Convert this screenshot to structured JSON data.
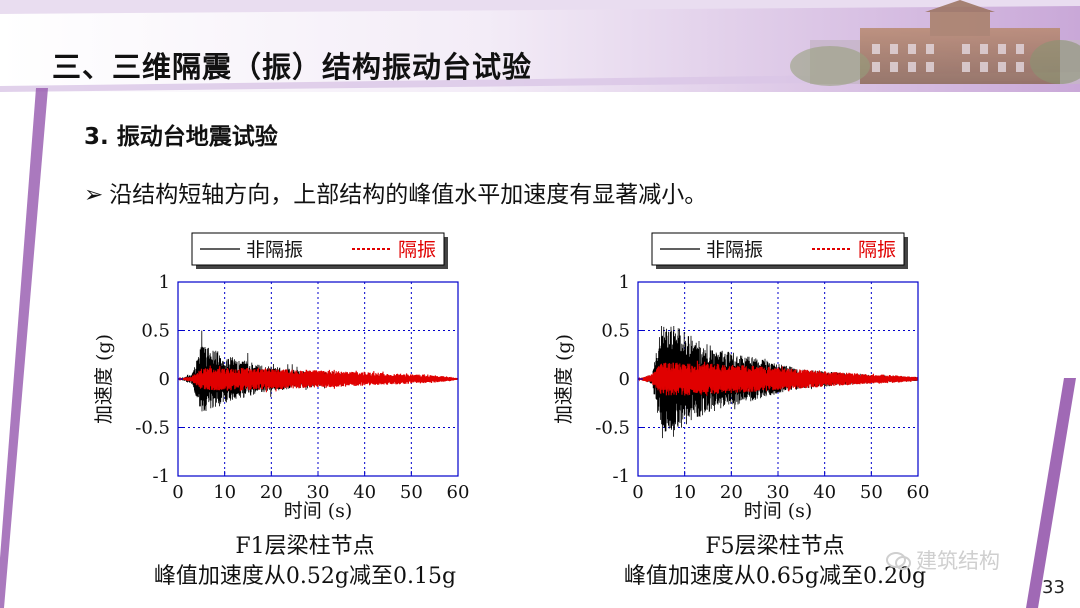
{
  "header": {
    "title": "三、三维隔震（振）结构振动台试验",
    "subtitle": "3. 振动台地震试验",
    "bullet_marker": "➢",
    "bullet_text": "沿结构短轴方向，上部结构的峰值水平加速度有显著减小。"
  },
  "legend": {
    "series1": "非隔振",
    "series2": "隔振"
  },
  "colors": {
    "series1": "#000000",
    "series2": "#e00000",
    "grid": "#0000cc",
    "bannerGradientStart": "#ffffff",
    "bannerGradientEnd": "#b58ac9",
    "accentStripe": "#8f4fa8"
  },
  "chart_data": [
    {
      "type": "line",
      "title": "",
      "xlabel": "时间 (s)",
      "ylabel": "加速度 (g)",
      "xlim": [
        0,
        60
      ],
      "ylim": [
        -1,
        1
      ],
      "xticks": [
        0,
        10,
        20,
        30,
        40,
        50,
        60
      ],
      "yticks": [
        -1,
        -0.5,
        0,
        0.5,
        1
      ],
      "ytick_labels": [
        "-1",
        "-0.5",
        "0",
        "0.5",
        "1"
      ],
      "grid": true,
      "legend_position": "top",
      "series": [
        {
          "name": "非隔振",
          "style": "solid",
          "peak": 0.52,
          "envelope": {
            "t": [
              0,
              3,
              5,
              8,
              12,
              18,
              25,
              30,
              35,
              40,
              45,
              50,
              60
            ],
            "a": [
              0.0,
              0.05,
              0.35,
              0.3,
              0.22,
              0.14,
              0.1,
              0.08,
              0.05,
              0.04,
              0.03,
              0.02,
              0.01
            ]
          }
        },
        {
          "name": "隔振",
          "style": "dashed",
          "peak": 0.15,
          "envelope": {
            "t": [
              0,
              3,
              5,
              10,
              20,
              30,
              40,
              50,
              55,
              60
            ],
            "a": [
              0.0,
              0.03,
              0.11,
              0.12,
              0.11,
              0.09,
              0.07,
              0.05,
              0.04,
              0.01
            ]
          }
        }
      ],
      "caption_line1": "F1层梁柱节点",
      "caption_line2": "峰值加速度从0.52g减至0.15g"
    },
    {
      "type": "line",
      "title": "",
      "xlabel": "时间 (s)",
      "ylabel": "加速度 (g)",
      "xlim": [
        0,
        60
      ],
      "ylim": [
        -1,
        1
      ],
      "xticks": [
        0,
        10,
        20,
        30,
        40,
        50,
        60
      ],
      "yticks": [
        -1,
        -0.5,
        0,
        0.5,
        1
      ],
      "ytick_labels": [
        "-1",
        "-0.5",
        "0",
        "0.5",
        "1"
      ],
      "grid": true,
      "legend_position": "top",
      "series": [
        {
          "name": "非隔振",
          "style": "solid",
          "peak": 0.65,
          "envelope": {
            "t": [
              0,
              3,
              5,
              8,
              12,
              18,
              25,
              30,
              35,
              40,
              45,
              50,
              55,
              60
            ],
            "a": [
              0.0,
              0.05,
              0.55,
              0.55,
              0.42,
              0.3,
              0.22,
              0.16,
              0.1,
              0.08,
              0.06,
              0.04,
              0.03,
              0.02
            ]
          }
        },
        {
          "name": "隔振",
          "style": "dashed",
          "peak": 0.2,
          "envelope": {
            "t": [
              0,
              3,
              5,
              10,
              20,
              30,
              40,
              50,
              55,
              60
            ],
            "a": [
              0.0,
              0.05,
              0.17,
              0.17,
              0.15,
              0.12,
              0.08,
              0.05,
              0.04,
              0.02
            ]
          }
        }
      ],
      "caption_line1": "F5层梁柱节点",
      "caption_line2": "峰值加速度从0.65g减至0.20g"
    }
  ],
  "watermark": "建筑结构",
  "page_number": "33"
}
